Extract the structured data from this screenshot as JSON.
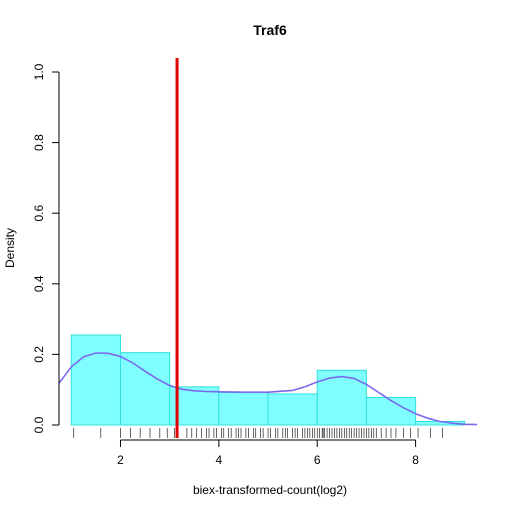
{
  "chart_data": {
    "type": "histogram",
    "title": "Traf6",
    "xlabel": "biex-transformed-count(log2)",
    "ylabel": "Density",
    "xlim": [
      0.75,
      9.35
    ],
    "ylim": [
      0,
      1.0
    ],
    "x_ticks": [
      2,
      4,
      6,
      8
    ],
    "y_ticks": [
      "0.0",
      "0.2",
      "0.4",
      "0.6",
      "0.8",
      "1.0"
    ],
    "bins": [
      {
        "x0": 1,
        "x1": 2,
        "density": 0.255
      },
      {
        "x0": 2,
        "x1": 3,
        "density": 0.205
      },
      {
        "x0": 3,
        "x1": 4,
        "density": 0.108
      },
      {
        "x0": 4,
        "x1": 5,
        "density": 0.092
      },
      {
        "x0": 5,
        "x1": 6,
        "density": 0.088
      },
      {
        "x0": 6,
        "x1": 7,
        "density": 0.155
      },
      {
        "x0": 7,
        "x1": 8,
        "density": 0.078
      },
      {
        "x0": 8,
        "x1": 9,
        "density": 0.01
      }
    ],
    "density_curve": {
      "x": [
        0.75,
        1.0,
        1.25,
        1.5,
        1.75,
        2.0,
        2.25,
        2.5,
        2.75,
        3.0,
        3.25,
        3.5,
        3.75,
        4.0,
        4.5,
        5.0,
        5.5,
        5.75,
        6.0,
        6.25,
        6.5,
        6.75,
        7.0,
        7.25,
        7.5,
        7.75,
        8.0,
        8.25,
        8.5,
        8.75,
        9.0,
        9.25
      ],
      "y": [
        0.118,
        0.165,
        0.193,
        0.204,
        0.203,
        0.194,
        0.176,
        0.152,
        0.13,
        0.112,
        0.101,
        0.097,
        0.095,
        0.094,
        0.093,
        0.093,
        0.098,
        0.108,
        0.122,
        0.133,
        0.137,
        0.132,
        0.115,
        0.092,
        0.069,
        0.049,
        0.032,
        0.019,
        0.01,
        0.005,
        0.002,
        0.001
      ]
    },
    "vertical_line": 3.15,
    "rug": [
      1.05,
      1.6,
      2.0,
      2.2,
      2.4,
      2.6,
      2.8,
      2.95,
      3.1,
      3.35,
      3.45,
      3.55,
      3.65,
      3.75,
      3.8,
      3.9,
      3.95,
      4.05,
      4.1,
      4.2,
      4.25,
      4.35,
      4.4,
      4.45,
      4.55,
      4.6,
      4.7,
      4.75,
      4.85,
      4.9,
      5.0,
      5.05,
      5.15,
      5.2,
      5.3,
      5.35,
      5.4,
      5.5,
      5.55,
      5.6,
      5.7,
      5.75,
      5.8,
      5.85,
      5.9,
      5.95,
      6.0,
      6.05,
      6.1,
      6.12,
      6.15,
      6.2,
      6.25,
      6.3,
      6.35,
      6.4,
      6.45,
      6.5,
      6.55,
      6.6,
      6.65,
      6.7,
      6.75,
      6.8,
      6.85,
      6.9,
      6.95,
      7.0,
      7.05,
      7.1,
      7.15,
      7.2,
      7.3,
      7.4,
      7.5,
      7.6,
      7.75,
      7.9,
      8.05,
      8.3,
      8.55
    ],
    "colors": {
      "bar_fill": "#7fffff",
      "bar_stroke": "#33e0e0",
      "curve": "#7b68ee",
      "vline": "#e00000"
    }
  }
}
